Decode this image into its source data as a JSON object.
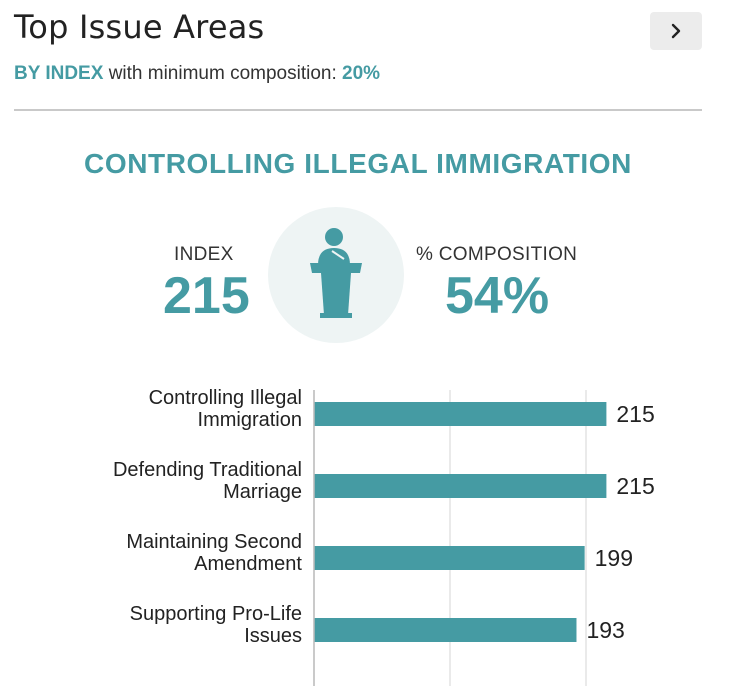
{
  "header": {
    "title": "Top Issue Areas",
    "subtitle_prefix": "BY INDEX",
    "subtitle_middle": "with minimum composition:",
    "subtitle_value": "20%",
    "next_icon": "chevron-right-icon"
  },
  "highlight": {
    "issue": "CONTROLLING ILLEGAL IMMIGRATION",
    "index_label": "INDEX",
    "index_value": "215",
    "composition_label": "% COMPOSITION",
    "composition_value": "54%",
    "icon": "podium-icon"
  },
  "colors": {
    "accent": "#459ba3",
    "icon_bg": "#eef4f4"
  },
  "chart_data": {
    "type": "bar",
    "orientation": "horizontal",
    "categories": [
      [
        "Controlling Illegal",
        "Immigration"
      ],
      [
        "Defending Traditional",
        "Marriage"
      ],
      [
        "Maintaining Second",
        "Amendment"
      ],
      [
        "Supporting Pro-Life",
        "Issues"
      ]
    ],
    "values": [
      215,
      215,
      199,
      193
    ],
    "xlim": [
      0,
      300
    ],
    "grid": true,
    "bar_color": "#459ba3"
  }
}
